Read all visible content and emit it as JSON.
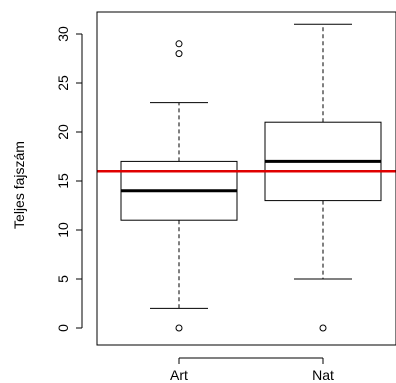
{
  "chart_data": {
    "type": "boxplot",
    "title": "",
    "xlabel": "",
    "ylabel": "Teljes fajszám",
    "ylim": [
      -1.6,
      32.6
    ],
    "y_ticks": [
      0,
      5,
      10,
      15,
      20,
      25,
      30
    ],
    "categories": [
      "Art",
      "Nat"
    ],
    "boxes": [
      {
        "category": "Art",
        "whisker_low": 2,
        "q1": 11,
        "median": 14,
        "q3": 17,
        "whisker_high": 23,
        "outliers": [
          0,
          28,
          29
        ]
      },
      {
        "category": "Nat",
        "whisker_low": 5,
        "q1": 13,
        "median": 17,
        "q3": 21,
        "whisker_high": 31,
        "outliers": [
          0
        ]
      }
    ],
    "reference_line": {
      "y": 16,
      "color": "#e00000"
    },
    "grid": false,
    "legend": "none"
  }
}
